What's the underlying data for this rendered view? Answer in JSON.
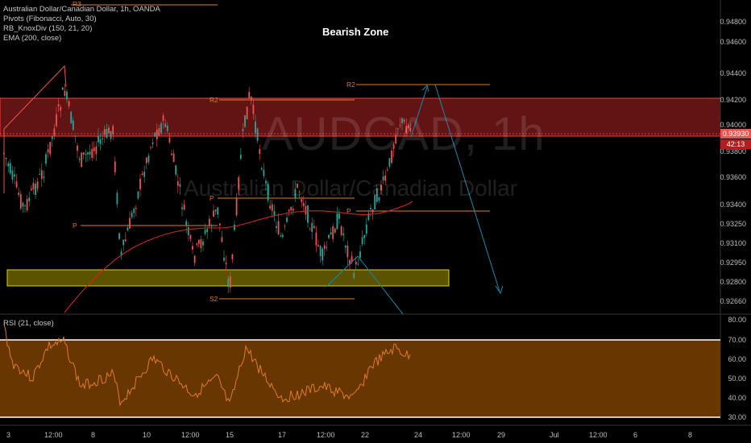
{
  "legend": {
    "symbol": "Australian Dollar/Canadian Dollar, 1h, OANDA",
    "ind1": "Pivots (Fibonacci, Auto, 30)",
    "ind2": "RB_KnoxDiv (150, 21, 20)",
    "ind3": "EMA (200, close)"
  },
  "rsi_legend": "RSI (21, close)",
  "annotation_title": "Bearish Zone",
  "watermark": {
    "ticker": "AUDCAD, 1h",
    "name": "Australian Dollar/Canadian Dollar"
  },
  "price_axis": [
    "0.94800",
    "0.94600",
    "0.94400",
    "0.94200",
    "0.94000",
    "0.93800",
    "0.93600",
    "0.93400",
    "0.93250",
    "0.93100",
    "0.92950",
    "0.92800",
    "0.92660"
  ],
  "current_price": "0.93930",
  "countdown": "42:13",
  "rsi_axis": [
    "80.00",
    "70.00",
    "60.00",
    "50.00",
    "40.00",
    "30.00"
  ],
  "time_axis": [
    "3",
    "12:00",
    "8",
    "10",
    "12:00",
    "15",
    "17",
    "12:00",
    "22",
    "24",
    "12:00",
    "29",
    "Jul",
    "12:00",
    "6",
    "8"
  ],
  "pivots": {
    "r2_left": "R2",
    "p_left": "P",
    "p_mid": "P",
    "s2": "S2",
    "r2_right": "R2",
    "p_right": "P",
    "r3": "R3"
  },
  "colors": {
    "up": "#26a69a",
    "down": "#ef5350",
    "zone_red": "#b22222",
    "zone_yellow": "#9a8a00",
    "rsi_fill": "#7a4000",
    "pivot": "#e07a2a",
    "ema": "#c62828",
    "arrow": "#1e88a8"
  }
}
